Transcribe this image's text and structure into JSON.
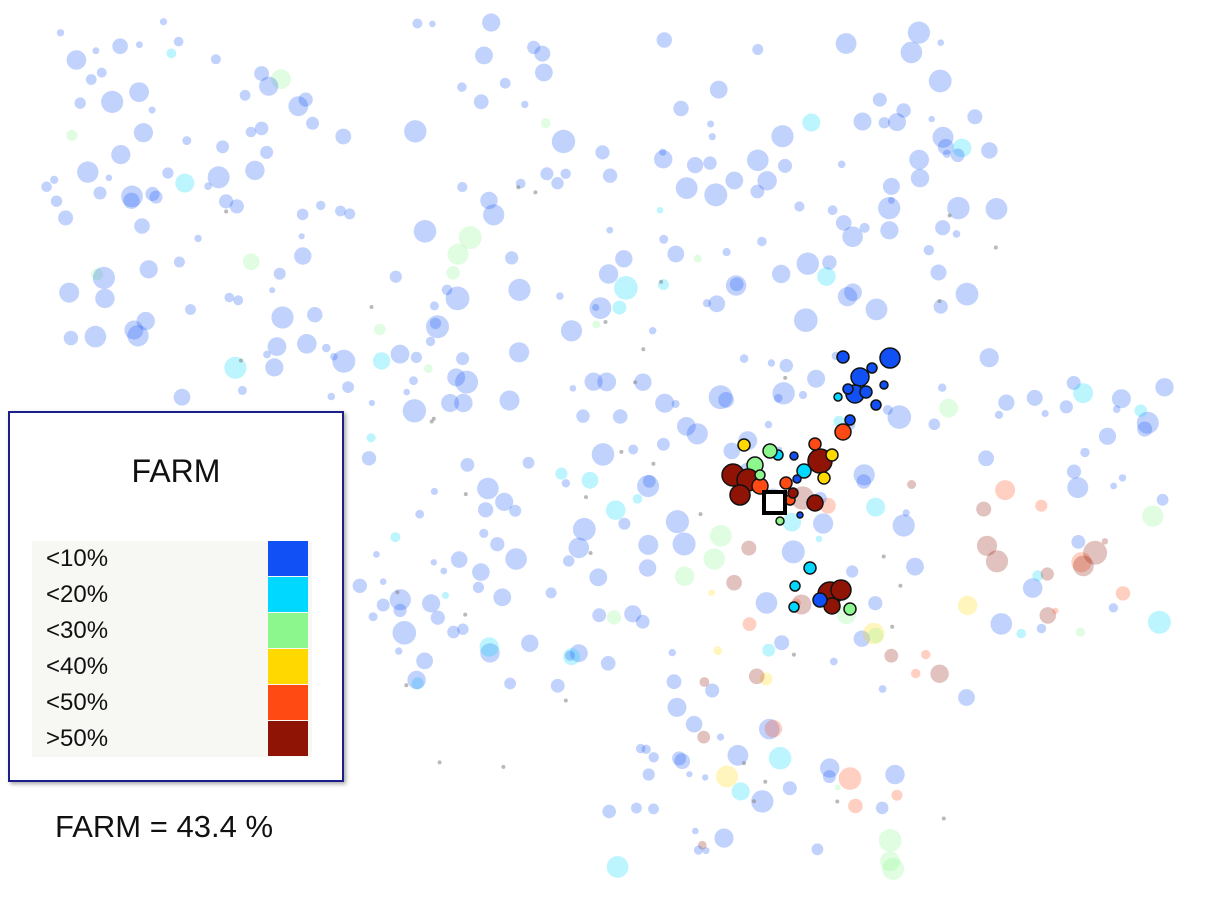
{
  "legend": {
    "title": "FARM",
    "items": [
      {
        "label": "<10%",
        "color": "#1150f5"
      },
      {
        "label": "<20%",
        "color": "#00d8ff"
      },
      {
        "label": "<30%",
        "color": "#8cf78c"
      },
      {
        "label": "<40%",
        "color": "#ffd800"
      },
      {
        "label": "<50%",
        "color": "#ff4a14"
      },
      {
        "label": ">50%",
        "color": "#8f1405"
      }
    ]
  },
  "readout": {
    "name": "FARM",
    "equals": "=",
    "value": "43.4",
    "unit": "%"
  },
  "selected_marker_icon": "square-marker-icon"
}
